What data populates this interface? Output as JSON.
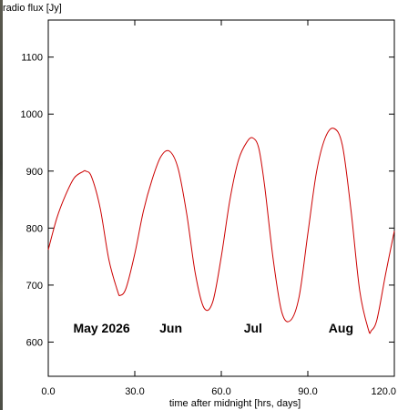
{
  "chart_data": {
    "type": "line",
    "ylabel": "radio flux [Jy]",
    "xlabel": "time after midnight [hrs, days]",
    "xlim": [
      0,
      120
    ],
    "ylim": [
      540,
      1165
    ],
    "x_ticks": [
      0,
      30,
      60,
      90,
      120
    ],
    "x_tick_labels": [
      "0.0",
      "30.0",
      "60.0",
      "90.0",
      "120.0"
    ],
    "y_ticks": [
      600,
      700,
      800,
      900,
      1000,
      1100
    ],
    "y_tick_labels": [
      "600",
      "700",
      "800",
      "900",
      "1000",
      "1100"
    ],
    "grid": false,
    "series": [
      {
        "color": "#cc0000",
        "x": [
          0,
          3,
          6,
          9,
          12,
          13,
          15,
          18,
          21,
          24,
          25,
          27,
          30,
          33,
          36,
          39,
          42,
          45,
          48,
          51,
          54,
          57,
          60,
          63,
          66,
          69,
          71,
          73,
          75,
          78,
          81,
          84,
          87,
          90,
          93,
          96,
          99,
          102,
          105,
          108,
          111,
          112,
          114,
          117,
          120
        ],
        "y": [
          762,
          818,
          858,
          888,
          899,
          900,
          890,
          835,
          745,
          690,
          682,
          695,
          755,
          830,
          885,
          925,
          935,
          905,
          825,
          720,
          660,
          670,
          750,
          850,
          920,
          952,
          958,
          940,
          875,
          745,
          652,
          638,
          680,
          790,
          898,
          958,
          975,
          945,
          830,
          690,
          622,
          620,
          640,
          720,
          795
        ]
      }
    ],
    "annotations": [
      {
        "text": "May 2026",
        "x": 18.5,
        "y": 617
      },
      {
        "text": "Jun",
        "x": 42.5,
        "y": 617
      },
      {
        "text": "Jul",
        "x": 71,
        "y": 617
      },
      {
        "text": "Aug",
        "x": 101.5,
        "y": 617
      }
    ]
  }
}
